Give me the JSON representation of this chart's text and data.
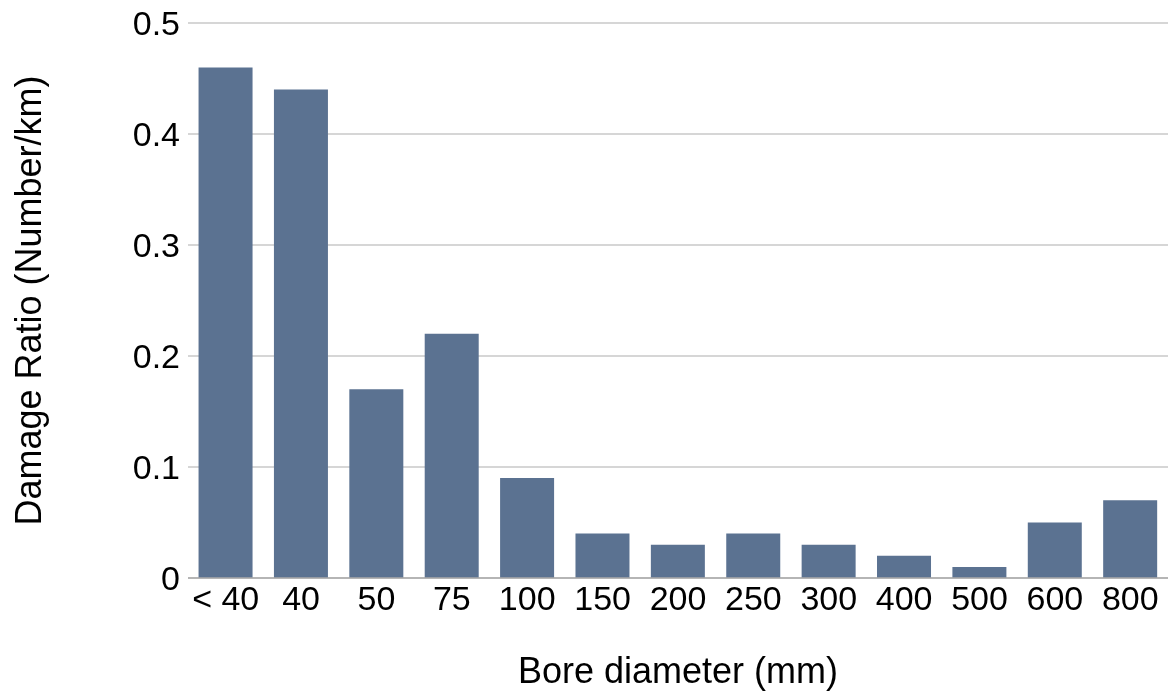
{
  "chart_data": {
    "type": "bar",
    "xlabel": "Bore diameter (mm)",
    "ylabel": "Damage Ratio (Number/km)",
    "categories": [
      "< 40",
      "40",
      "50",
      "75",
      "100",
      "150",
      "200",
      "250",
      "300",
      "400",
      "500",
      "600",
      "800"
    ],
    "values": [
      0.46,
      0.44,
      0.17,
      0.22,
      0.09,
      0.04,
      0.03,
      0.04,
      0.03,
      0.02,
      0.01,
      0.05,
      0.07
    ],
    "color": "#5b7291",
    "ylim": [
      0,
      0.5
    ],
    "yticks": [
      0,
      0.1,
      0.2,
      0.3,
      0.4,
      0.5
    ],
    "grid": "y"
  }
}
